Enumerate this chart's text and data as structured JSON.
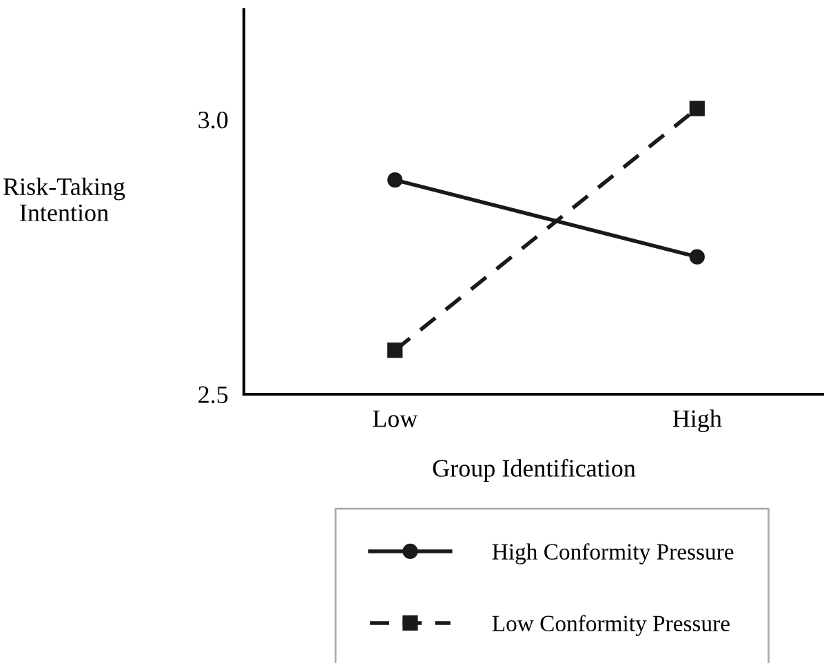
{
  "chart_data": {
    "type": "line",
    "xlabel": "Group Identification",
    "ylabel": "Risk-Taking\nIntention",
    "categories": [
      "Low",
      "High"
    ],
    "series": [
      {
        "name": "High Conformity Pressure",
        "color": "#1a1a1a",
        "values": [
          2.89,
          2.75
        ],
        "marker": "circle",
        "line_style": "solid"
      },
      {
        "name": "Low Conformity Pressure",
        "color": "#1a1a1a",
        "values": [
          2.58,
          3.02
        ],
        "marker": "square",
        "line_style": "dashed"
      }
    ],
    "ylim": [
      2.5,
      3.2
    ],
    "yticks": [
      2.5,
      {
        "value": 3,
        "label": "3.0"
      }
    ],
    "grid": false,
    "legend": "bottom"
  }
}
